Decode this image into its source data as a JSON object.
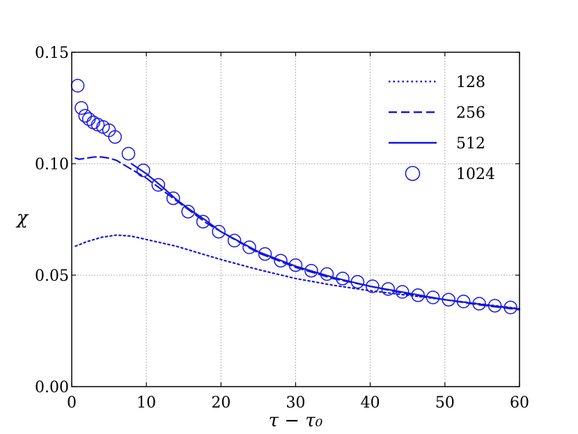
{
  "chart_data": {
    "type": "line",
    "title": "",
    "xlabel": "τ − τ₀",
    "ylabel": "χ",
    "xlim": [
      0,
      60
    ],
    "ylim": [
      0,
      0.15
    ],
    "xticks": [
      0,
      10,
      20,
      30,
      40,
      50,
      60
    ],
    "yticks": [
      0.0,
      0.05,
      0.1,
      0.15
    ],
    "xtick_labels": [
      "0",
      "10",
      "20",
      "30",
      "40",
      "50",
      "60"
    ],
    "ytick_labels": [
      "0.00",
      "0.05",
      "0.10",
      "0.15"
    ],
    "grid": true,
    "legend_position": "top-right",
    "color": "#1515e0",
    "series": [
      {
        "name": "128",
        "style": "dotted",
        "x": [
          0.5,
          2,
          4,
          6,
          8,
          10,
          12,
          14,
          16,
          18,
          20,
          25,
          30,
          35,
          40,
          45,
          50,
          55,
          60
        ],
        "y": [
          0.063,
          0.065,
          0.067,
          0.068,
          0.0675,
          0.066,
          0.0645,
          0.063,
          0.061,
          0.059,
          0.057,
          0.0525,
          0.0485,
          0.0455,
          0.043,
          0.041,
          0.039,
          0.037,
          0.035
        ]
      },
      {
        "name": "256",
        "style": "dashed",
        "x": [
          0.5,
          1,
          2,
          3,
          4,
          5,
          6,
          7,
          8,
          10,
          12,
          14,
          16,
          18,
          20,
          25,
          30,
          35,
          40,
          45,
          50,
          55,
          60
        ],
        "y": [
          0.1025,
          0.102,
          0.1025,
          0.103,
          0.103,
          0.1025,
          0.1015,
          0.0995,
          0.0975,
          0.0935,
          0.0885,
          0.0835,
          0.0785,
          0.0735,
          0.0695,
          0.06,
          0.0535,
          0.0485,
          0.045,
          0.0415,
          0.039,
          0.0365,
          0.0345
        ]
      },
      {
        "name": "512",
        "style": "solid",
        "x": [
          8,
          10,
          12,
          14,
          16,
          18,
          20,
          25,
          30,
          35,
          40,
          45,
          50,
          55,
          60
        ],
        "y": [
          0.1,
          0.0955,
          0.09,
          0.084,
          0.079,
          0.0745,
          0.0695,
          0.0605,
          0.054,
          0.049,
          0.045,
          0.042,
          0.039,
          0.0368,
          0.0348
        ]
      },
      {
        "name": "1024",
        "style": "circles",
        "x": [
          0.8,
          1.3,
          1.8,
          2.3,
          2.9,
          3.5,
          4.2,
          5.0,
          5.8,
          7.6,
          9.6,
          11.6,
          13.6,
          15.6,
          17.6,
          19.7,
          21.8,
          23.8,
          25.9,
          28.0,
          30.0,
          32.1,
          34.2,
          36.3,
          38.3,
          40.3,
          42.4,
          44.3,
          46.4,
          48.4,
          50.5,
          52.5,
          54.6,
          56.7,
          58.8
        ],
        "y": [
          0.135,
          0.125,
          0.1215,
          0.12,
          0.1185,
          0.1175,
          0.1165,
          0.115,
          0.112,
          0.1045,
          0.097,
          0.0905,
          0.0845,
          0.0785,
          0.074,
          0.0695,
          0.0655,
          0.0625,
          0.0595,
          0.0565,
          0.0545,
          0.052,
          0.0505,
          0.0485,
          0.047,
          0.045,
          0.0438,
          0.0425,
          0.041,
          0.04,
          0.039,
          0.0382,
          0.0372,
          0.0363,
          0.0355
        ]
      }
    ]
  }
}
